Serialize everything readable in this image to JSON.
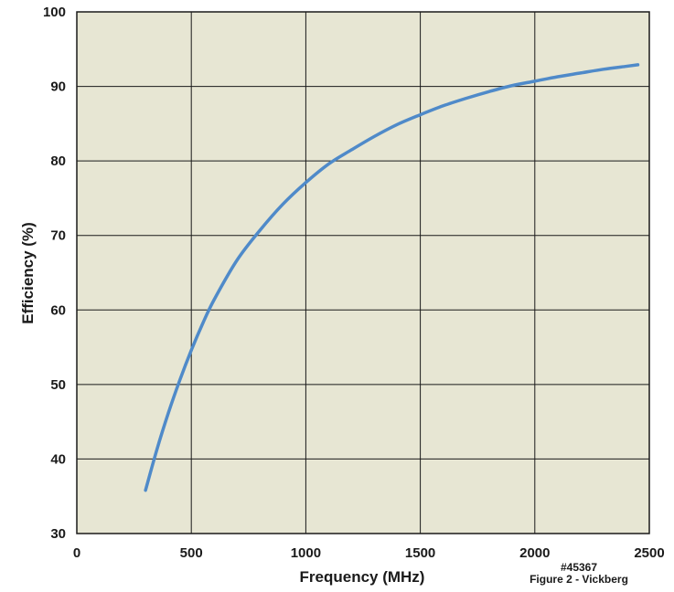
{
  "chart_data": {
    "type": "line",
    "xlabel": "Frequency (MHz)",
    "ylabel": "Efficiency (%)",
    "xlim": [
      0,
      2500
    ],
    "ylim": [
      30,
      100
    ],
    "x_ticks": [
      0,
      500,
      1000,
      1500,
      2000,
      2500
    ],
    "y_ticks": [
      30,
      40,
      50,
      60,
      70,
      80,
      90,
      100
    ],
    "grid": true,
    "legend": "none",
    "colors": {
      "plot_background": "#e7e6d3",
      "line": "#4f8ac9",
      "grid": "#1a1a1a"
    },
    "series": [
      {
        "x": [
          300,
          350,
          400,
          450,
          500,
          550,
          600,
          700,
          800,
          900,
          1000,
          1100,
          1200,
          1300,
          1400,
          1500,
          1600,
          1700,
          1800,
          1900,
          2000,
          2100,
          2200,
          2300,
          2400,
          2450
        ],
        "y": [
          35.8,
          41.3,
          46.2,
          50.6,
          54.6,
          58.2,
          61.4,
          66.7,
          70.7,
          74.2,
          77.1,
          79.6,
          81.5,
          83.3,
          84.9,
          86.2,
          87.4,
          88.4,
          89.3,
          90.1,
          90.7,
          91.3,
          91.8,
          92.3,
          92.7,
          92.9
        ]
      }
    ],
    "annotations": [
      "#45367",
      "Figure 2 - Vickberg"
    ]
  }
}
